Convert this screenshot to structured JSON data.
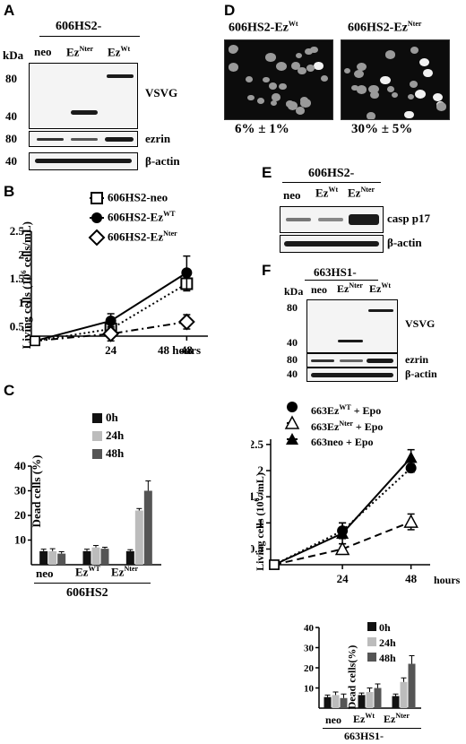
{
  "panel_A": {
    "letter": "A",
    "cell_line": "606HS2-",
    "kda": "kDa",
    "lanes": [
      "neo",
      "Ez",
      "Ez"
    ],
    "lane_sups": [
      "",
      "Nter",
      "Wt"
    ],
    "mw_markers": [
      "80",
      "40",
      "80",
      "40"
    ],
    "blots": [
      "VSVG",
      "ezrin",
      "β-actin"
    ]
  },
  "panel_B": {
    "letter": "B",
    "legend": [
      "606HS2-neo",
      "606HS2-Ez",
      "606HS2-Ez"
    ],
    "legend_sups": [
      "",
      "WT",
      "Nter"
    ],
    "ylabel": "Living cells (10",
    "ylabel_sup": "6",
    "ylabel_tail": " cells/mL)",
    "xlabel": "48 hours"
  },
  "panel_C": {
    "letter": "C",
    "legend": [
      "0h",
      "24h",
      "48h"
    ],
    "ylabel": "Dead cells (%)",
    "groups": [
      "neo",
      "Ez",
      "Ez"
    ],
    "group_sups": [
      "",
      "WT",
      "Nter"
    ],
    "cell_line": "606HS2"
  },
  "panel_D": {
    "letter": "D",
    "titles": [
      "606HS2-Ez",
      "606HS2-Ez"
    ],
    "title_sups": [
      "Wt",
      "Nter"
    ],
    "percentages": [
      "6% ± 1%",
      "30% ± 5%"
    ]
  },
  "panel_E": {
    "letter": "E",
    "cell_line": "606HS2-",
    "lanes": [
      "neo",
      "Ez",
      "Ez"
    ],
    "lane_sups": [
      "",
      "Wt",
      "Nter"
    ],
    "blots": [
      "casp p17",
      "β-actin"
    ]
  },
  "panel_F": {
    "letter": "F",
    "cell_line": "663HS1-",
    "kda": "kDa",
    "lanes": [
      "neo",
      "Ez",
      "Ez"
    ],
    "lane_sups": [
      "",
      "Nter",
      "Wt"
    ],
    "mw_markers": [
      "80",
      "40",
      "80",
      "40"
    ],
    "blots": [
      "VSVG",
      "ezrin",
      "β-actin"
    ],
    "legend": [
      "663Ez",
      "663Ez",
      "663neo   + Epo"
    ],
    "legend_sups": [
      "WT",
      "Nter",
      ""
    ],
    "legend_tails": [
      " + Epo",
      " + Epo",
      ""
    ],
    "ylabel": "Living cells (10",
    "ylabel_sup": "6",
    "ylabel_tail": " /mL)",
    "xlabel": "hours",
    "bar_legend": [
      "0h",
      "24h",
      "48h"
    ],
    "bar_ylabel": "Dead cells(%)",
    "groups": [
      "neo",
      "Ez",
      "Ez"
    ],
    "group_sups": [
      "",
      "Wt",
      "Nter"
    ],
    "bar_cell_line": "663HS1-"
  },
  "chart_data": [
    {
      "type": "line",
      "panel": "B",
      "x": [
        0,
        24,
        48
      ],
      "xticks": [
        "24",
        "48"
      ],
      "ylabel": "Living cells (10^6 cells/mL)",
      "ylim": [
        0.3,
        2.5
      ],
      "yticks": [
        "0.5",
        "1",
        "1.5",
        "2",
        "2.5"
      ],
      "series": [
        {
          "name": "606HS2-neo",
          "values": [
            0.2,
            0.45,
            1.4
          ],
          "errors": [
            0.02,
            0.1,
            0.15
          ],
          "style": "dotted",
          "marker": "open-square"
        },
        {
          "name": "606HS2-EzWT",
          "values": [
            0.2,
            0.62,
            1.63
          ],
          "errors": [
            0.02,
            0.15,
            0.35
          ],
          "style": "solid",
          "marker": "filled-circle"
        },
        {
          "name": "606HS2-EzNter",
          "values": [
            0.2,
            0.35,
            0.6
          ],
          "errors": [
            0.02,
            0.15,
            0.15
          ],
          "style": "dash-dot",
          "marker": "open-diamond"
        }
      ]
    },
    {
      "type": "bar",
      "panel": "C",
      "categories": [
        "neo",
        "EzWT",
        "EzNter"
      ],
      "ylabel": "Dead cells (%)",
      "ylim": [
        0,
        40
      ],
      "yticks": [
        "10",
        "20",
        "30",
        "40"
      ],
      "series": [
        {
          "name": "0h",
          "values": [
            5.5,
            5.5,
            5.5
          ],
          "errors": [
            0.8,
            0.8,
            0.6
          ],
          "color": "#111111"
        },
        {
          "name": "24h",
          "values": [
            5.5,
            7,
            22
          ],
          "errors": [
            1,
            0.8,
            0.8
          ],
          "color": "#bcbcbc"
        },
        {
          "name": "48h",
          "values": [
            4.5,
            6.5,
            30
          ],
          "errors": [
            0.8,
            0.6,
            4
          ],
          "color": "#555555"
        }
      ]
    },
    {
      "type": "line",
      "panel": "F",
      "x": [
        0,
        24,
        48
      ],
      "xticks": [
        "24",
        "48"
      ],
      "ylabel": "Living cells (10^6 /mL)",
      "ylim": [
        0.2,
        2.6
      ],
      "yticks": [
        "0.5",
        "1",
        "1.5",
        "2",
        "2.5"
      ],
      "series": [
        {
          "name": "663EzWT + Epo",
          "values": [
            0.2,
            0.85,
            2.05
          ],
          "errors": [
            0.02,
            0.15,
            0.08
          ],
          "style": "dotted",
          "marker": "filled-circle"
        },
        {
          "name": "663EzNter + Epo",
          "values": [
            0.2,
            0.5,
            1.02
          ],
          "errors": [
            0.02,
            0.1,
            0.15
          ],
          "style": "dashed",
          "marker": "open-triangle"
        },
        {
          "name": "663neo + Epo",
          "values": [
            0.2,
            0.8,
            2.25
          ],
          "errors": [
            0.02,
            0.2,
            0.15
          ],
          "style": "solid",
          "marker": "filled-triangle"
        }
      ]
    },
    {
      "type": "bar",
      "panel": "F",
      "categories": [
        "neo",
        "EzWt",
        "EzNter"
      ],
      "ylabel": "Dead cells(%)",
      "ylim": [
        0,
        40
      ],
      "yticks": [
        "10",
        "20",
        "30",
        "40"
      ],
      "series": [
        {
          "name": "0h",
          "values": [
            5.5,
            6.5,
            6
          ],
          "errors": [
            1,
            1,
            1
          ],
          "color": "#111111"
        },
        {
          "name": "24h",
          "values": [
            6.5,
            8,
            13
          ],
          "errors": [
            1.5,
            2,
            2
          ],
          "color": "#bcbcbc"
        },
        {
          "name": "48h",
          "values": [
            5,
            10,
            22
          ],
          "errors": [
            2,
            2,
            4
          ],
          "color": "#555555"
        }
      ]
    }
  ]
}
